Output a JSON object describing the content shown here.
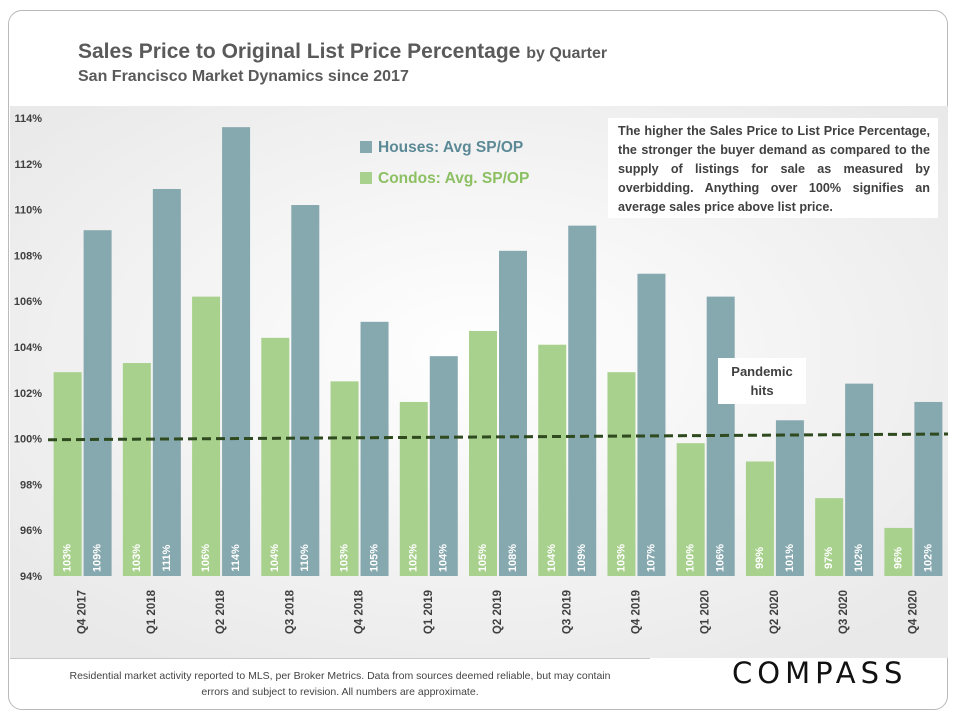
{
  "header": {
    "title": "Sales Price to Original List Price Percentage",
    "title_suffix": "by Quarter",
    "subtitle": "San Francisco Market Dynamics since 2017"
  },
  "annotations": {
    "explanation": "The higher the Sales Price to List Price Percentage, the stronger the buyer demand as compared to the supply of listings for sale as measured by overbidding. Anything over 100% signifies an average sales price above list price.",
    "pandemic": "Pandemic hits"
  },
  "footer": {
    "note": "Residential market activity reported to MLS, per Broker Metrics. Data from sources deemed reliable, but may contain errors and subject to revision. All numbers are approximate.",
    "brand": "COMPASS"
  },
  "colors": {
    "houses": "#86A8AF",
    "condos": "#A9D18E",
    "trendline": "#2E4A1E",
    "legend_text_houses": "#5B8A96",
    "legend_text_condos": "#8CC063"
  },
  "chart_data": {
    "type": "bar",
    "categories": [
      "Q4 2017",
      "Q1 2018",
      "Q2 2018",
      "Q3 2018",
      "Q4 2018",
      "Q1 2019",
      "Q2 2019",
      "Q3 2019",
      "Q4 2019",
      "Q1 2020",
      "Q2 2020",
      "Q3 2020",
      "Q4 2020"
    ],
    "series": [
      {
        "name": "Condos: Avg. SP/OP",
        "values": [
          102.9,
          103.3,
          106.2,
          104.4,
          102.5,
          101.6,
          104.7,
          104.1,
          102.9,
          99.8,
          99.0,
          97.4,
          96.1
        ],
        "labels": [
          "103%",
          "103%",
          "106%",
          "104%",
          "103%",
          "102%",
          "105%",
          "104%",
          "103%",
          "100%",
          "99%",
          "97%",
          "96%"
        ]
      },
      {
        "name": "Houses: Avg SP/OP",
        "values": [
          109.1,
          110.9,
          113.6,
          110.2,
          105.1,
          103.6,
          108.2,
          109.3,
          107.2,
          106.2,
          100.8,
          102.4,
          101.6
        ],
        "labels": [
          "109%",
          "111%",
          "114%",
          "110%",
          "105%",
          "104%",
          "108%",
          "109%",
          "107%",
          "106%",
          "101%",
          "102%",
          "102%"
        ]
      }
    ],
    "trendline": {
      "style": "dashed",
      "start": 99.95,
      "end": 100.2
    },
    "y_ticks": [
      "94%",
      "96%",
      "98%",
      "100%",
      "102%",
      "104%",
      "106%",
      "108%",
      "110%",
      "112%",
      "114%"
    ],
    "ylim": [
      94,
      114
    ],
    "legend_position": "top-left"
  }
}
